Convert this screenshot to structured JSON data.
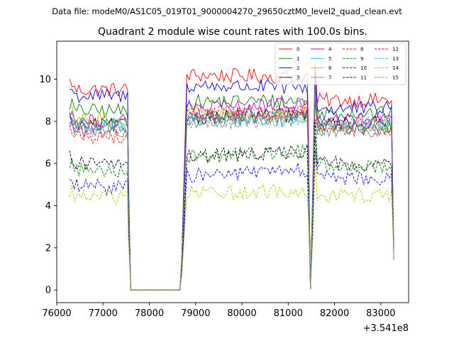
{
  "chart_data": {
    "type": "line",
    "suptitle": "Data file: modeM0/AS1C05_019T01_9000004270_29650cztM0_level2_quad_clean.evt",
    "title": "Quadrant 2 module wise count rates with 100.0s bins.",
    "xlabel": "",
    "ylabel": "",
    "x_offset_label": "+3.541e8",
    "x_offset": 354100000,
    "xlim": [
      76000,
      83600
    ],
    "ylim": [
      -0.6,
      11.8
    ],
    "xticks": [
      76000,
      77000,
      78000,
      79000,
      80000,
      81000,
      82000,
      83000
    ],
    "xtick_labels": [
      "76000",
      "77000",
      "78000",
      "79000",
      "80000",
      "81000",
      "82000",
      "83000"
    ],
    "yticks": [
      0,
      2,
      4,
      6,
      8,
      10
    ],
    "ytick_labels": [
      "0",
      "2",
      "4",
      "6",
      "8",
      "10"
    ],
    "legend_location": "top-right",
    "segments": [
      {
        "start": 76280,
        "end": 77580,
        "step": 50
      },
      {
        "start": 77580,
        "end": 78680,
        "step": 100
      },
      {
        "start": 78680,
        "end": 81480,
        "step": 50
      },
      {
        "start": 81480,
        "end": 83280,
        "step": 50
      }
    ],
    "series": [
      {
        "name": "0",
        "color": "#ff0000",
        "dash": "solid",
        "base": [
          9.5,
          10.2,
          10.1,
          9.0
        ]
      },
      {
        "name": "1",
        "color": "#008000",
        "dash": "solid",
        "base": [
          8.5,
          8.9,
          9.0,
          8.4
        ]
      },
      {
        "name": "2",
        "color": "#0000ff",
        "dash": "solid",
        "base": [
          9.2,
          9.7,
          9.6,
          8.6
        ]
      },
      {
        "name": "3",
        "color": "#000000",
        "dash": "solid",
        "base": [
          7.8,
          8.2,
          8.3,
          7.9
        ]
      },
      {
        "name": "4",
        "color": "#bf00bf",
        "dash": "solid",
        "base": [
          8.0,
          8.6,
          8.8,
          8.1
        ]
      },
      {
        "name": "5",
        "color": "#00bfbf",
        "dash": "solid",
        "base": [
          7.9,
          8.0,
          8.1,
          7.7
        ]
      },
      {
        "name": "6",
        "color": "#bfbf00",
        "dash": "solid",
        "base": [
          8.1,
          8.4,
          8.3,
          7.8
        ]
      },
      {
        "name": "7",
        "color": "#808080",
        "dash": "solid",
        "base": [
          7.5,
          8.0,
          8.1,
          7.6
        ]
      },
      {
        "name": "8",
        "color": "#ff0000",
        "dash": "dashed",
        "base": [
          7.3,
          8.3,
          8.4,
          7.6
        ]
      },
      {
        "name": "9",
        "color": "#008000",
        "dash": "dashed",
        "base": [
          5.7,
          6.3,
          6.6,
          5.9
        ]
      },
      {
        "name": "10",
        "color": "#0000ff",
        "dash": "dashed",
        "base": [
          4.9,
          5.4,
          5.7,
          5.3
        ]
      },
      {
        "name": "11",
        "color": "#000000",
        "dash": "dashed",
        "base": [
          6.0,
          6.3,
          6.6,
          6.0
        ]
      },
      {
        "name": "12",
        "color": "#bf00bf",
        "dash": "dashed",
        "base": [
          7.7,
          8.4,
          8.5,
          7.9
        ]
      },
      {
        "name": "13",
        "color": "#00bfbf",
        "dash": "dashed",
        "base": [
          7.8,
          8.2,
          8.3,
          7.9
        ]
      },
      {
        "name": "14",
        "color": "#bfbf00",
        "dash": "dashed",
        "base": [
          4.4,
          4.6,
          4.7,
          4.5
        ]
      },
      {
        "name": "15",
        "color": "#808080",
        "dash": "dashed",
        "base": [
          7.6,
          7.9,
          8.1,
          7.7
        ]
      }
    ]
  }
}
